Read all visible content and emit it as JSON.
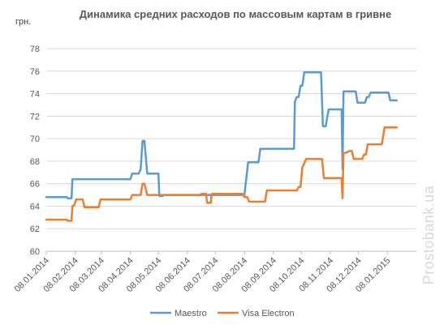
{
  "chart_data": {
    "type": "line",
    "title": "Динамика средних расходов по массовым картам в гривне",
    "ylabel": "грн.",
    "ylim": [
      60,
      78
    ],
    "yticks": [
      60,
      62,
      64,
      66,
      68,
      70,
      72,
      74,
      76,
      78
    ],
    "xlim": [
      "2014-01-08",
      "2015-02-08"
    ],
    "xticks": [
      "08.01.2014",
      "08.02.2014",
      "08.03.2014",
      "08.04.2014",
      "08.05.2014",
      "08.06.2014",
      "08.07.2014",
      "08.08.2014",
      "08.09.2014",
      "08.10.2014",
      "08.11.2014",
      "08.12.2014",
      "08.01.2015"
    ],
    "grid": "horizontal",
    "legend_position": "bottom",
    "watermark": "Prostobank.ua",
    "series": [
      {
        "name": "Maestro",
        "color": "#5b9bd5",
        "points": [
          [
            "2014-01-08",
            64.8
          ],
          [
            "2014-01-30",
            64.8
          ],
          [
            "2014-01-31",
            64.7
          ],
          [
            "2014-02-04",
            64.7
          ],
          [
            "2014-02-05",
            66.4
          ],
          [
            "2014-04-08",
            66.4
          ],
          [
            "2014-04-10",
            66.9
          ],
          [
            "2014-04-17",
            66.9
          ],
          [
            "2014-04-19",
            67.3
          ],
          [
            "2014-04-21",
            69.8
          ],
          [
            "2014-04-23",
            69.8
          ],
          [
            "2014-04-26",
            66.9
          ],
          [
            "2014-05-08",
            66.9
          ],
          [
            "2014-05-09",
            64.9
          ],
          [
            "2014-05-12",
            64.9
          ],
          [
            "2014-05-14",
            65.0
          ],
          [
            "2014-08-08",
            65.0
          ],
          [
            "2014-08-12",
            67.9
          ],
          [
            "2014-08-23",
            67.9
          ],
          [
            "2014-08-25",
            69.1
          ],
          [
            "2014-09-30",
            69.1
          ],
          [
            "2014-10-01",
            73.3
          ],
          [
            "2014-10-03",
            73.7
          ],
          [
            "2014-10-05",
            73.7
          ],
          [
            "2014-10-07",
            74.7
          ],
          [
            "2014-10-09",
            74.7
          ],
          [
            "2014-10-11",
            75.9
          ],
          [
            "2014-10-29",
            75.9
          ],
          [
            "2014-10-31",
            71.1
          ],
          [
            "2014-11-03",
            71.1
          ],
          [
            "2014-11-06",
            72.6
          ],
          [
            "2014-11-20",
            72.6
          ],
          [
            "2014-11-21",
            67.3
          ],
          [
            "2014-11-22",
            74.2
          ],
          [
            "2014-12-05",
            74.2
          ],
          [
            "2014-12-07",
            73.2
          ],
          [
            "2014-12-15",
            73.2
          ],
          [
            "2014-12-17",
            73.7
          ],
          [
            "2014-12-19",
            73.7
          ],
          [
            "2014-12-21",
            74.1
          ],
          [
            "2015-01-09",
            74.1
          ],
          [
            "2015-01-11",
            73.4
          ],
          [
            "2015-01-18",
            73.4
          ]
        ]
      },
      {
        "name": "Visa Electron",
        "color": "#ed7d31",
        "points": [
          [
            "2014-01-08",
            62.8
          ],
          [
            "2014-01-30",
            62.8
          ],
          [
            "2014-01-31",
            62.7
          ],
          [
            "2014-02-04",
            62.7
          ],
          [
            "2014-02-05",
            64.0
          ],
          [
            "2014-02-07",
            64.1
          ],
          [
            "2014-02-09",
            64.6
          ],
          [
            "2014-02-16",
            64.6
          ],
          [
            "2014-02-18",
            63.9
          ],
          [
            "2014-03-05",
            63.9
          ],
          [
            "2014-03-07",
            64.6
          ],
          [
            "2014-04-08",
            64.6
          ],
          [
            "2014-04-10",
            65.0
          ],
          [
            "2014-04-19",
            65.0
          ],
          [
            "2014-04-21",
            66.0
          ],
          [
            "2014-04-23",
            66.0
          ],
          [
            "2014-04-26",
            65.0
          ],
          [
            "2014-06-21",
            65.0
          ],
          [
            "2014-06-23",
            65.1
          ],
          [
            "2014-06-28",
            65.1
          ],
          [
            "2014-06-29",
            64.3
          ],
          [
            "2014-07-03",
            64.3
          ],
          [
            "2014-07-04",
            65.1
          ],
          [
            "2014-08-06",
            65.1
          ],
          [
            "2014-08-08",
            64.8
          ],
          [
            "2014-08-11",
            64.8
          ],
          [
            "2014-08-13",
            64.4
          ],
          [
            "2014-08-30",
            64.4
          ],
          [
            "2014-09-01",
            65.4
          ],
          [
            "2014-10-03",
            65.4
          ],
          [
            "2014-10-05",
            65.7
          ],
          [
            "2014-10-07",
            65.7
          ],
          [
            "2014-10-09",
            67.5
          ],
          [
            "2014-10-10",
            67.6
          ],
          [
            "2014-10-13",
            68.2
          ],
          [
            "2014-10-30",
            68.2
          ],
          [
            "2014-11-01",
            66.5
          ],
          [
            "2014-11-20",
            66.5
          ],
          [
            "2014-11-21",
            64.7
          ],
          [
            "2014-11-22",
            68.7
          ],
          [
            "2014-11-26",
            68.8
          ],
          [
            "2014-11-28",
            68.9
          ],
          [
            "2014-12-01",
            68.9
          ],
          [
            "2014-12-03",
            68.2
          ],
          [
            "2014-12-12",
            68.2
          ],
          [
            "2014-12-14",
            68.6
          ],
          [
            "2014-12-16",
            68.6
          ],
          [
            "2014-12-18",
            69.5
          ],
          [
            "2015-01-02",
            69.5
          ],
          [
            "2015-01-05",
            71.0
          ],
          [
            "2015-01-18",
            71.0
          ]
        ]
      }
    ]
  }
}
